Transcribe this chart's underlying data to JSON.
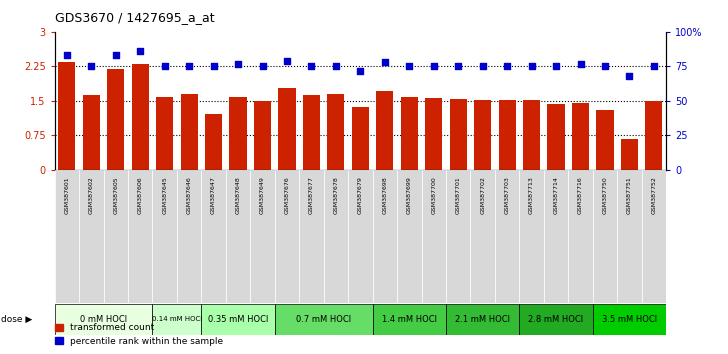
{
  "title": "GDS3670 / 1427695_a_at",
  "samples": [
    "GSM387601",
    "GSM387602",
    "GSM387605",
    "GSM387606",
    "GSM387645",
    "GSM387646",
    "GSM387647",
    "GSM387648",
    "GSM387649",
    "GSM387676",
    "GSM387677",
    "GSM387678",
    "GSM387679",
    "GSM387698",
    "GSM387699",
    "GSM387700",
    "GSM387701",
    "GSM387702",
    "GSM387703",
    "GSM387713",
    "GSM387714",
    "GSM387716",
    "GSM387750",
    "GSM387751",
    "GSM387752"
  ],
  "bar_values": [
    2.35,
    1.62,
    2.2,
    2.3,
    1.59,
    1.65,
    1.22,
    1.59,
    1.5,
    1.78,
    1.62,
    1.65,
    1.37,
    1.72,
    1.58,
    1.57,
    1.55,
    1.53,
    1.52,
    1.52,
    1.43,
    1.46,
    1.3,
    0.67,
    1.49
  ],
  "dot_values": [
    83,
    75,
    83,
    86,
    75,
    75,
    75,
    77,
    75,
    79,
    75,
    75,
    72,
    78,
    75,
    75,
    75,
    75,
    75,
    75,
    75,
    77,
    75,
    68,
    75
  ],
  "dose_groups": [
    {
      "label": "0 mM HOCl",
      "start": 0,
      "end": 4,
      "color": "#e8ffe0"
    },
    {
      "label": "0.14 mM HOCl",
      "start": 4,
      "end": 6,
      "color": "#ccffcc"
    },
    {
      "label": "0.35 mM HOCl",
      "start": 6,
      "end": 9,
      "color": "#aaffaa"
    },
    {
      "label": "0.7 mM HOCl",
      "start": 9,
      "end": 13,
      "color": "#66dd66"
    },
    {
      "label": "1.4 mM HOCl",
      "start": 13,
      "end": 16,
      "color": "#44cc44"
    },
    {
      "label": "2.1 mM HOCl",
      "start": 16,
      "end": 19,
      "color": "#33bb33"
    },
    {
      "label": "2.8 mM HOCl",
      "start": 19,
      "end": 22,
      "color": "#22aa22"
    },
    {
      "label": "3.5 mM HOCl",
      "start": 22,
      "end": 25,
      "color": "#00cc00"
    }
  ],
  "bar_color": "#cc2200",
  "dot_color": "#0000cc",
  "ylim_left": [
    0,
    3
  ],
  "ylim_right": [
    0,
    100
  ],
  "yticks_left": [
    0,
    0.75,
    1.5,
    2.25,
    3
  ],
  "ytick_labels_left": [
    "0",
    "0.75",
    "1.5",
    "2.25",
    "3"
  ],
  "yticks_right": [
    0,
    25,
    50,
    75,
    100
  ],
  "ytick_labels_right": [
    "0",
    "25",
    "50",
    "75",
    "100%"
  ]
}
